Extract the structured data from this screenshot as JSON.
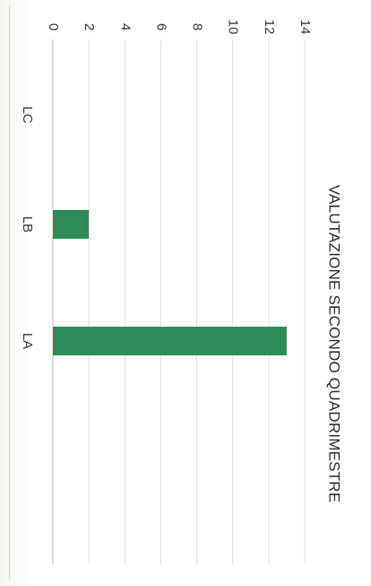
{
  "chart_data": {
    "type": "bar",
    "orientation": "horizontal",
    "title": "VALUTAZIONE SECONDO QUADRIMESTRE",
    "categories": [
      "LC",
      "LB",
      "LA"
    ],
    "values": [
      0,
      2,
      13
    ],
    "xlim": [
      0,
      14
    ],
    "ticks": [
      0,
      2,
      4,
      6,
      8,
      10,
      12,
      14
    ],
    "grid": true,
    "bar_color": "#2e8b57"
  }
}
